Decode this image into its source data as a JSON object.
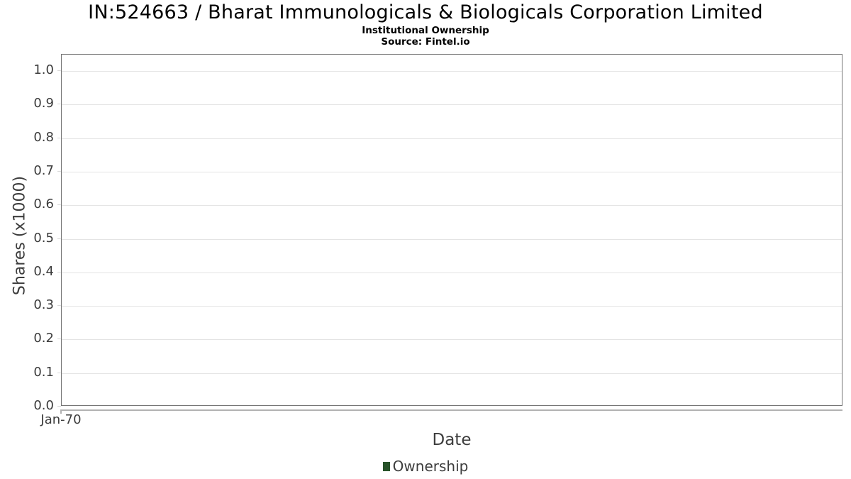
{
  "chart": {
    "title": "IN:524663 / Bharat Immunologicals & Biologicals Corporation Limited",
    "subtitle": "Institutional Ownership",
    "source": "Source: Fintel.io",
    "xlabel": "Date",
    "ylabel": "Shares (x1000)",
    "legend_label": "Ownership"
  },
  "chart_data": {
    "type": "line",
    "title": "IN:524663 / Bharat Immunologicals & Biologicals Corporation Limited",
    "subtitle": "Institutional Ownership",
    "source": "Source: Fintel.io",
    "xlabel": "Date",
    "ylabel": "Shares (x1000)",
    "x": [],
    "series": [
      {
        "name": "Ownership",
        "values": [],
        "color": "#275229"
      }
    ],
    "ylim": [
      0.0,
      1.05
    ],
    "yticks": [
      0.0,
      0.1,
      0.2,
      0.3,
      0.4,
      0.5,
      0.6,
      0.7,
      0.8,
      0.9,
      1.0
    ],
    "ytick_labels": [
      "0.0",
      "0.1",
      "0.2",
      "0.3",
      "0.4",
      "0.5",
      "0.6",
      "0.7",
      "0.8",
      "0.9",
      "1.0"
    ],
    "xtick_labels": [
      "Jan-70"
    ],
    "grid": true,
    "legend_position": "bottom",
    "colors": {
      "legend_marker": "#275229",
      "tick_text": "#3c3c3c",
      "grid": "#e4e4e4",
      "plot_border": "#747474"
    }
  }
}
